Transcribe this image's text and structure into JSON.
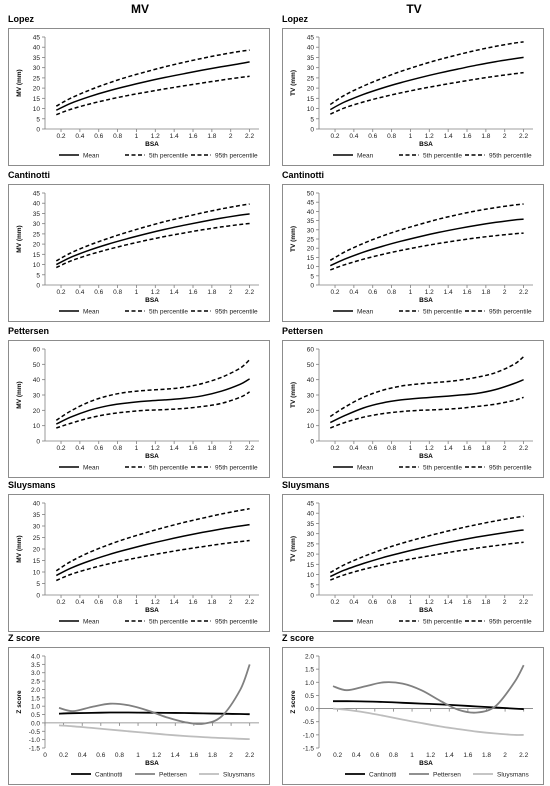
{
  "columns": [
    "MV",
    "TV"
  ],
  "chart_data": [
    {
      "type": "line",
      "title": "Lopez",
      "xlabel": "BSA",
      "ylabel": "MV (mm)",
      "ylim": [
        0,
        45
      ],
      "yticks": [
        0,
        5,
        10,
        15,
        20,
        25,
        30,
        35,
        40,
        45
      ],
      "xticks": [
        "0.2",
        "0.4",
        "0.6",
        "0.8",
        "1",
        "1.2",
        "1.4",
        "1.6",
        "1.8",
        "2",
        "2.2"
      ],
      "xlim": [
        0.03,
        2.3
      ],
      "x": [
        0.15,
        0.3,
        0.5,
        0.7,
        0.9,
        1.1,
        1.3,
        1.5,
        1.7,
        1.9,
        2.1,
        2.2
      ],
      "series": [
        {
          "name": "Mean",
          "style": "solid",
          "values": [
            9.2,
            12.5,
            15.8,
            18.6,
            21.0,
            23.2,
            25.2,
            27.0,
            28.8,
            30.4,
            32.0,
            32.8
          ]
        },
        {
          "name": "5th percentile",
          "style": "dashed",
          "values": [
            7.0,
            9.6,
            12.2,
            14.4,
            16.3,
            18.0,
            19.6,
            21.1,
            22.5,
            23.9,
            25.2,
            25.8
          ]
        },
        {
          "name": "95th percentile",
          "style": "dashed",
          "values": [
            11.2,
            15.0,
            19.0,
            22.4,
            25.4,
            28.0,
            30.4,
            32.6,
            34.6,
            36.4,
            38.0,
            38.6
          ]
        }
      ]
    },
    {
      "type": "line",
      "title": "Lopez",
      "xlabel": "BSA",
      "ylabel": "TV (mm)",
      "ylim": [
        0,
        45
      ],
      "yticks": [
        0,
        5,
        10,
        15,
        20,
        25,
        30,
        35,
        40,
        45
      ],
      "xticks": [
        "0.2",
        "0.4",
        "0.6",
        "0.8",
        "1",
        "1.2",
        "1.4",
        "1.6",
        "1.8",
        "2",
        "2.2"
      ],
      "xlim": [
        0.03,
        2.3
      ],
      "x": [
        0.15,
        0.3,
        0.5,
        0.7,
        0.9,
        1.1,
        1.3,
        1.5,
        1.7,
        1.9,
        2.1,
        2.2
      ],
      "series": [
        {
          "name": "Mean",
          "style": "solid",
          "values": [
            9.5,
            13.2,
            16.9,
            20.0,
            22.7,
            25.1,
            27.3,
            29.3,
            31.2,
            32.9,
            34.4,
            35.0
          ]
        },
        {
          "name": "5th percentile",
          "style": "dashed",
          "values": [
            7.3,
            10.3,
            13.2,
            15.6,
            17.7,
            19.6,
            21.3,
            22.9,
            24.4,
            25.8,
            27.0,
            27.6
          ]
        },
        {
          "name": "95th percentile",
          "style": "dashed",
          "values": [
            12.0,
            16.5,
            21.0,
            24.8,
            28.2,
            31.2,
            33.9,
            36.3,
            38.5,
            40.4,
            42.0,
            42.6
          ]
        }
      ]
    },
    {
      "type": "line",
      "title": "Cantinotti",
      "xlabel": "BSA",
      "ylabel": "MV (mm)",
      "ylim": [
        0,
        45
      ],
      "yticks": [
        0,
        5,
        10,
        15,
        20,
        25,
        30,
        35,
        40,
        45
      ],
      "xticks": [
        "0.2",
        "0.4",
        "0.6",
        "0.8",
        "1",
        "1.2",
        "1.4",
        "1.6",
        "1.8",
        "2",
        "2.2"
      ],
      "xlim": [
        0.03,
        2.3
      ],
      "x": [
        0.15,
        0.3,
        0.5,
        0.7,
        0.9,
        1.1,
        1.3,
        1.5,
        1.7,
        1.9,
        2.1,
        2.2
      ],
      "series": [
        {
          "name": "Mean",
          "style": "solid",
          "values": [
            10.0,
            13.5,
            17.0,
            20.0,
            22.6,
            25.0,
            27.2,
            29.2,
            31.0,
            32.7,
            34.2,
            34.8
          ]
        },
        {
          "name": "5th percentile",
          "style": "dashed",
          "values": [
            8.5,
            11.7,
            14.8,
            17.4,
            19.7,
            21.8,
            23.7,
            25.4,
            27.0,
            28.4,
            29.6,
            30.1
          ]
        },
        {
          "name": "95th percentile",
          "style": "dashed",
          "values": [
            11.8,
            15.6,
            19.5,
            22.8,
            25.8,
            28.5,
            31.0,
            33.2,
            35.3,
            37.2,
            38.9,
            39.6
          ]
        }
      ]
    },
    {
      "type": "line",
      "title": "Cantinotti",
      "xlabel": "BSA",
      "ylabel": "TV (mm)",
      "ylim": [
        0,
        50
      ],
      "yticks": [
        0,
        5,
        10,
        15,
        20,
        25,
        30,
        35,
        40,
        45,
        50
      ],
      "xticks": [
        "0.2",
        "0.4",
        "0.6",
        "0.8",
        "1",
        "1.2",
        "1.4",
        "1.6",
        "1.8",
        "2",
        "2.2"
      ],
      "xlim": [
        0.03,
        2.3
      ],
      "x": [
        0.15,
        0.3,
        0.5,
        0.7,
        0.9,
        1.1,
        1.3,
        1.5,
        1.7,
        1.9,
        2.1,
        2.2
      ],
      "series": [
        {
          "name": "Mean",
          "style": "solid",
          "values": [
            10.5,
            14.0,
            17.8,
            21.0,
            23.8,
            26.3,
            28.6,
            30.6,
            32.4,
            34.0,
            35.3,
            35.8
          ]
        },
        {
          "name": "5th percentile",
          "style": "dashed",
          "values": [
            8.2,
            11.0,
            14.0,
            16.6,
            18.8,
            20.8,
            22.6,
            24.2,
            25.6,
            26.8,
            27.8,
            28.2
          ]
        },
        {
          "name": "95th percentile",
          "style": "dashed",
          "values": [
            13.4,
            17.9,
            22.6,
            26.6,
            30.0,
            33.0,
            35.8,
            38.2,
            40.3,
            42.0,
            43.5,
            44.0
          ]
        }
      ]
    },
    {
      "type": "line",
      "title": "Pettersen",
      "xlabel": "BSA",
      "ylabel": "MV (mm)",
      "ylim": [
        0,
        60
      ],
      "yticks": [
        0,
        10,
        20,
        30,
        40,
        50,
        60
      ],
      "xticks": [
        "0.2",
        "0.4",
        "0.6",
        "0.8",
        "1",
        "1.2",
        "1.4",
        "1.6",
        "1.8",
        "2",
        "2.2"
      ],
      "xlim": [
        0.03,
        2.3
      ],
      "x": [
        0.15,
        0.3,
        0.5,
        0.7,
        0.9,
        1.1,
        1.3,
        1.5,
        1.7,
        1.9,
        2.1,
        2.2
      ],
      "series": [
        {
          "name": "Mean",
          "style": "solid",
          "values": [
            11.0,
            15.5,
            20.0,
            23.0,
            24.8,
            26.0,
            26.8,
            27.8,
            29.5,
            32.5,
            37.0,
            40.5
          ]
        },
        {
          "name": "5th percentile",
          "style": "dashed",
          "values": [
            8.5,
            11.5,
            15.0,
            17.5,
            19.0,
            20.0,
            20.5,
            21.2,
            22.5,
            24.5,
            28.5,
            32.0
          ]
        },
        {
          "name": "95th percentile",
          "style": "dashed",
          "values": [
            13.5,
            19.5,
            25.5,
            29.5,
            31.8,
            33.0,
            33.8,
            35.0,
            37.5,
            41.5,
            47.5,
            53.0
          ]
        }
      ]
    },
    {
      "type": "line",
      "title": "Pettersen",
      "xlabel": "BSA",
      "ylabel": "TV (mm)",
      "ylim": [
        0,
        60
      ],
      "yticks": [
        0,
        10,
        20,
        30,
        40,
        50,
        60
      ],
      "xticks": [
        "0.2",
        "0.4",
        "0.6",
        "0.8",
        "1",
        "1.2",
        "1.4",
        "1.6",
        "1.8",
        "2",
        "2.2"
      ],
      "xlim": [
        0.03,
        2.3
      ],
      "x": [
        0.15,
        0.3,
        0.5,
        0.7,
        0.9,
        1.1,
        1.3,
        1.5,
        1.7,
        1.9,
        2.1,
        2.2
      ],
      "series": [
        {
          "name": "Mean",
          "style": "solid",
          "values": [
            12.0,
            16.5,
            21.5,
            24.8,
            26.8,
            28.0,
            28.8,
            29.8,
            31.0,
            33.5,
            37.5,
            40.0
          ]
        },
        {
          "name": "5th percentile",
          "style": "dashed",
          "values": [
            8.5,
            12.0,
            15.5,
            17.8,
            19.2,
            20.0,
            20.5,
            21.2,
            22.5,
            24.0,
            26.5,
            28.5
          ]
        },
        {
          "name": "95th percentile",
          "style": "dashed",
          "values": [
            16.0,
            22.0,
            28.5,
            33.0,
            35.8,
            37.3,
            38.3,
            39.5,
            41.5,
            44.5,
            50.0,
            55.0
          ]
        }
      ]
    },
    {
      "type": "line",
      "title": "Sluysmans",
      "xlabel": "BSA",
      "ylabel": "MV (mm)",
      "ylim": [
        0,
        40
      ],
      "yticks": [
        0,
        5,
        10,
        15,
        20,
        25,
        30,
        35,
        40
      ],
      "xticks": [
        "0.2",
        "0.4",
        "0.6",
        "0.8",
        "1",
        "1.2",
        "1.4",
        "1.6",
        "1.8",
        "2",
        "2.2"
      ],
      "xlim": [
        0.03,
        2.3
      ],
      "x": [
        0.15,
        0.3,
        0.5,
        0.7,
        0.9,
        1.1,
        1.3,
        1.5,
        1.7,
        1.9,
        2.1,
        2.2
      ],
      "series": [
        {
          "name": "Mean",
          "style": "solid",
          "values": [
            8.5,
            11.6,
            14.8,
            17.5,
            19.8,
            21.9,
            23.8,
            25.6,
            27.2,
            28.7,
            30.0,
            30.6
          ]
        },
        {
          "name": "5th percentile",
          "style": "dashed",
          "values": [
            6.3,
            8.9,
            11.4,
            13.5,
            15.3,
            16.9,
            18.4,
            19.8,
            21.0,
            22.2,
            23.2,
            23.7
          ]
        },
        {
          "name": "95th percentile",
          "style": "dashed",
          "values": [
            10.5,
            14.5,
            18.5,
            21.8,
            24.6,
            27.1,
            29.4,
            31.5,
            33.4,
            35.2,
            36.8,
            37.5
          ]
        }
      ]
    },
    {
      "type": "line",
      "title": "Sluysmans",
      "xlabel": "BSA",
      "ylabel": "TV (mm)",
      "ylim": [
        0,
        45
      ],
      "yticks": [
        0,
        5,
        10,
        15,
        20,
        25,
        30,
        35,
        40,
        45
      ],
      "xticks": [
        "0.2",
        "0.4",
        "0.6",
        "0.8",
        "1",
        "1.2",
        "1.4",
        "1.6",
        "1.8",
        "2",
        "2.2"
      ],
      "xlim": [
        0.03,
        2.3
      ],
      "x": [
        0.15,
        0.3,
        0.5,
        0.7,
        0.9,
        1.1,
        1.3,
        1.5,
        1.7,
        1.9,
        2.1,
        2.2
      ],
      "series": [
        {
          "name": "Mean",
          "style": "solid",
          "values": [
            9.0,
            12.2,
            15.4,
            18.2,
            20.6,
            22.8,
            24.8,
            26.6,
            28.3,
            29.8,
            31.2,
            31.8
          ]
        },
        {
          "name": "5th percentile",
          "style": "dashed",
          "values": [
            7.3,
            9.9,
            12.5,
            14.7,
            16.7,
            18.4,
            20.0,
            21.5,
            22.9,
            24.1,
            25.3,
            25.8
          ]
        },
        {
          "name": "95th percentile",
          "style": "dashed",
          "values": [
            11.0,
            14.8,
            18.8,
            22.2,
            25.2,
            27.8,
            30.2,
            32.4,
            34.4,
            36.2,
            37.8,
            38.5
          ]
        }
      ]
    },
    {
      "type": "line",
      "title": "Z score",
      "xlabel": "BSA",
      "ylabel": "Z score",
      "ylim": [
        -1.5,
        4.0
      ],
      "yticks": [
        -1.5,
        -1.0,
        -0.5,
        0.0,
        0.5,
        1.0,
        1.5,
        2.0,
        2.5,
        3.0,
        3.5,
        4.0
      ],
      "xticks": [
        "0",
        "0.2",
        "0.4",
        "0.6",
        "0.8",
        "1",
        "1.2",
        "1.4",
        "1.6",
        "1.8",
        "2",
        "2.2"
      ],
      "xlim": [
        0,
        2.3
      ],
      "x": [
        0.15,
        0.3,
        0.5,
        0.7,
        0.9,
        1.1,
        1.3,
        1.5,
        1.7,
        1.9,
        2.1,
        2.2
      ],
      "series": [
        {
          "name": "Cantinotti",
          "color": "#000000",
          "values": [
            0.55,
            0.58,
            0.6,
            0.62,
            0.62,
            0.61,
            0.6,
            0.59,
            0.57,
            0.55,
            0.53,
            0.52
          ]
        },
        {
          "name": "Pettersen",
          "color": "#808080",
          "values": [
            0.9,
            0.7,
            0.95,
            1.15,
            1.05,
            0.75,
            0.35,
            0.05,
            -0.05,
            0.4,
            2.0,
            3.5
          ]
        },
        {
          "name": "Sluysmans",
          "color": "#bdbdbd",
          "values": [
            -0.15,
            -0.2,
            -0.3,
            -0.4,
            -0.5,
            -0.6,
            -0.7,
            -0.78,
            -0.85,
            -0.9,
            -0.95,
            -0.97
          ]
        }
      ]
    },
    {
      "type": "line",
      "title": "Z score",
      "xlabel": "BSA",
      "ylabel": "Z score",
      "ylim": [
        -1.5,
        2.0
      ],
      "yticks": [
        -1.5,
        -1.0,
        -0.5,
        0.0,
        0.5,
        1.0,
        1.5,
        2.0
      ],
      "xticks": [
        "0",
        "0.2",
        "0.4",
        "0.6",
        "0.8",
        "1",
        "1.2",
        "1.4",
        "1.6",
        "1.8",
        "2",
        "2.2"
      ],
      "xlim": [
        0,
        2.3
      ],
      "x": [
        0.15,
        0.3,
        0.5,
        0.7,
        0.9,
        1.1,
        1.3,
        1.5,
        1.7,
        1.9,
        2.1,
        2.2
      ],
      "series": [
        {
          "name": "Cantinotti",
          "color": "#000000",
          "values": [
            0.28,
            0.28,
            0.27,
            0.25,
            0.22,
            0.19,
            0.16,
            0.12,
            0.08,
            0.04,
            0.0,
            -0.02
          ]
        },
        {
          "name": "Pettersen",
          "color": "#808080",
          "values": [
            0.85,
            0.7,
            0.85,
            1.0,
            0.95,
            0.7,
            0.3,
            -0.05,
            -0.15,
            0.1,
            1.0,
            1.65
          ]
        },
        {
          "name": "Sluysmans",
          "color": "#bdbdbd",
          "values": [
            0.0,
            -0.05,
            -0.15,
            -0.28,
            -0.42,
            -0.55,
            -0.68,
            -0.78,
            -0.88,
            -0.95,
            -1.0,
            -1.0
          ]
        }
      ]
    }
  ]
}
